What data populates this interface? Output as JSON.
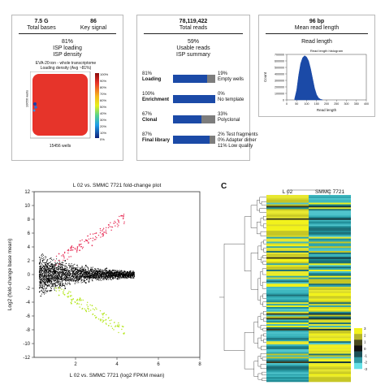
{
  "panel1": {
    "total_bases_value": "7.5 G",
    "total_bases_label": "Total bases",
    "key_signal_value": "86",
    "key_signal_label": "Key signal",
    "isp_pct": "81%",
    "isp_label": "ISP loading",
    "density_label": "ISP density",
    "chip_title": "EVA-20-ion - whole transcriptome",
    "chip_subtitle": "Loading density (Avg ~81%)",
    "y_axis": "10656 wells",
    "x_axis": "15456 wells",
    "colorbar_ticks": [
      "100%",
      "90%",
      "80%",
      "70%",
      "60%",
      "50%",
      "40%",
      "30%",
      "20%",
      "10%",
      "0%"
    ]
  },
  "panel2": {
    "total_reads_value": "78,119,422",
    "total_reads_label": "Total reads",
    "usable_pct": "59%",
    "usable_label": "Usable reads",
    "summary_label": "ISP summary",
    "rows": [
      {
        "pct": "81%",
        "label": "Loading",
        "fill": 0.81,
        "right": [
          "19%",
          "Empty wells"
        ]
      },
      {
        "pct": "100%",
        "label": "Enrichment",
        "fill": 1.0,
        "right": [
          "0%",
          "No template"
        ]
      },
      {
        "pct": "67%",
        "label": "Clonal",
        "fill": 0.67,
        "right": [
          "33%",
          "Polyclonal"
        ]
      },
      {
        "pct": "87%",
        "label": "Final library",
        "fill": 0.87,
        "right": [
          "2% Test fragments",
          "0% Adapter dimer",
          "11% Low quality"
        ]
      }
    ]
  },
  "panel3": {
    "read_length_value": "96 bp",
    "read_length_label": "Mean read length",
    "chart_title": "Read length",
    "chart_subtitle": "Read length histogram",
    "ylabel": "Count",
    "xlabel": "Read length"
  },
  "panel_c_label": "C",
  "chart_data": [
    {
      "type": "area",
      "title": "Read length",
      "subtitle": "Read length histogram",
      "xlabel": "Read length",
      "ylabel": "Count",
      "xlim": [
        0,
        400
      ],
      "ylim": [
        0,
        700000
      ],
      "x_ticks": [
        "0",
        "50",
        "100",
        "150",
        "200",
        "250",
        "300",
        "350",
        "400"
      ],
      "y_ticks": [
        "0",
        "100000",
        "200000",
        "300000",
        "400000",
        "500000",
        "600000",
        "700000"
      ],
      "x": [
        40,
        50,
        60,
        70,
        80,
        90,
        100,
        110,
        120,
        130,
        140,
        150,
        160,
        170,
        180
      ],
      "values": [
        20000,
        150000,
        380000,
        560000,
        650000,
        680000,
        660000,
        600000,
        480000,
        330000,
        180000,
        80000,
        30000,
        10000,
        2000
      ],
      "color": "#1b4aa7"
    },
    {
      "type": "scatter",
      "title": "L 02 vs. SMMC 7721 fold-change plot",
      "xlabel": "L 02 vs. SMMC 7721 (log2 FPKM mean)",
      "ylabel": "Log2 (fold-change base mean)",
      "xlim": [
        0,
        8
      ],
      "ylim": [
        -12,
        12
      ],
      "x_ticks": [
        "2",
        "4",
        "6",
        "8"
      ],
      "y_ticks": [
        "12",
        "10",
        "8",
        "6",
        "4",
        "2",
        "0",
        "-2",
        "-4",
        "-6",
        "-8",
        "-10",
        "-12"
      ],
      "grid": false,
      "series": [
        {
          "color": "#000000",
          "points": [
            [
              0.3,
              0.0
            ],
            [
              0.6,
              0.5
            ],
            [
              0.6,
              -0.6
            ],
            [
              1.0,
              1.4
            ],
            [
              1.0,
              -1.3
            ],
            [
              1.5,
              2.0
            ],
            [
              1.5,
              -2.0
            ],
            [
              2.0,
              0.8
            ],
            [
              2.0,
              -0.9
            ],
            [
              2.5,
              1.3
            ],
            [
              2.5,
              -1.2
            ],
            [
              3.0,
              0.5
            ],
            [
              3.0,
              -0.4
            ],
            [
              3.5,
              0.9
            ],
            [
              3.5,
              -0.7
            ],
            [
              4.0,
              0.3
            ],
            [
              4.5,
              -0.2
            ]
          ]
        },
        {
          "color": "#e8325a",
          "points": [
            [
              1.2,
              3.0
            ],
            [
              1.8,
              4.0
            ],
            [
              2.5,
              5.0
            ],
            [
              3.0,
              6.0
            ],
            [
              3.6,
              7.2
            ],
            [
              4.2,
              8.5
            ],
            [
              2.2,
              3.5
            ],
            [
              2.8,
              4.2
            ]
          ]
        },
        {
          "color": "#b5e61d",
          "points": [
            [
              1.2,
              -3.0
            ],
            [
              1.8,
              -4.2
            ],
            [
              2.5,
              -5.2
            ],
            [
              3.0,
              -6.2
            ],
            [
              3.6,
              -7.4
            ],
            [
              2.2,
              -3.6
            ],
            [
              2.8,
              -4.5
            ]
          ]
        }
      ]
    },
    {
      "type": "heatmap",
      "columns": [
        "L 02",
        "SMMC 7721"
      ],
      "colorbar_ticks": [
        "3",
        "2",
        "1",
        "0",
        "-1",
        "-2",
        "-3"
      ],
      "colorbar_colors": [
        "#f2f21b",
        "#b5b52a",
        "#4a4a20",
        "#111111",
        "#1c4f57",
        "#2f9aa4",
        "#66e0e6"
      ]
    }
  ]
}
